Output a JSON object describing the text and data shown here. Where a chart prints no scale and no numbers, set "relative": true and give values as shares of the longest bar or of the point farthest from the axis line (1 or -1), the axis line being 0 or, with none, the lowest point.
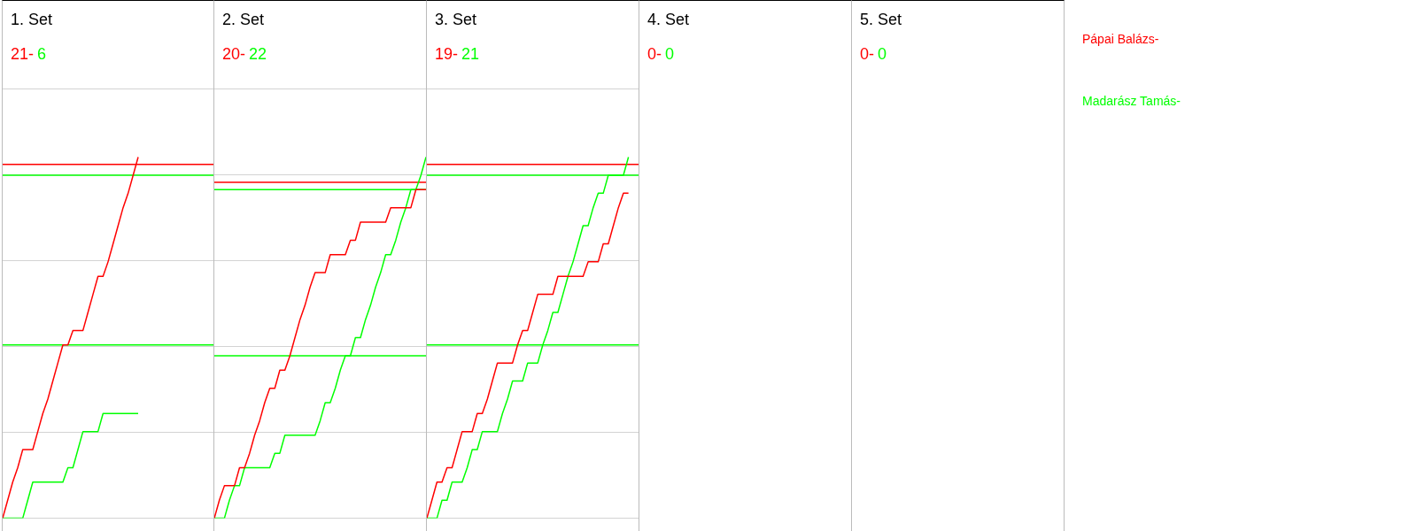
{
  "chart_data": [
    {
      "type": "line",
      "title": "1. Set",
      "annotations": [
        "21-",
        "6"
      ],
      "legend": "right",
      "grid": "y",
      "relative": true,
      "categories": [
        null,
        null,
        null,
        null,
        null,
        null,
        null,
        null,
        null,
        null,
        null,
        null,
        null,
        null,
        null,
        null,
        null,
        null,
        null,
        null,
        null,
        null,
        null,
        null,
        null,
        null,
        null,
        null,
        null,
        null,
        null,
        null,
        null,
        null,
        null,
        null,
        null,
        null,
        null,
        null,
        null,
        null,
        null
      ],
      "ref_lines": [
        {
          "axis": "y",
          "value": 0.98,
          "color": "#ff0000"
        },
        {
          "axis": "y",
          "value": 0.95,
          "color": "#00ff00"
        },
        {
          "axis": "y",
          "value": 0.48,
          "color": "#00ff00"
        }
      ],
      "series": [
        {
          "name": "Pápai Balázs-",
          "color": "#ff0000",
          "values": [
            0,
            0.05,
            0.1,
            0.14,
            0.19,
            0.19,
            0.19,
            0.24,
            0.29,
            0.33,
            0.38,
            0.43,
            0.48,
            0.48,
            0.52,
            0.52,
            0.52,
            0.57,
            0.62,
            0.67,
            0.67,
            0.71,
            0.76,
            0.81,
            0.86,
            0.9,
            0.95,
            1,
            null,
            null,
            null,
            null,
            null,
            null,
            null,
            null,
            null,
            null,
            null,
            null,
            null,
            null,
            null
          ]
        },
        {
          "name": "Madarász Tamás-",
          "color": "#00ff00",
          "values": [
            0,
            0,
            0,
            0,
            0,
            0.05,
            0.1,
            0.1,
            0.1,
            0.1,
            0.1,
            0.1,
            0.1,
            0.14,
            0.14,
            0.19,
            0.24,
            0.24,
            0.24,
            0.24,
            0.29,
            0.29,
            0.29,
            0.29,
            0.29,
            0.29,
            0.29,
            0.29,
            null,
            null,
            null,
            null,
            null,
            null,
            null,
            null,
            null,
            null,
            null,
            null,
            null,
            null,
            null
          ]
        }
      ]
    },
    {
      "type": "line",
      "title": "2. Set",
      "annotations": [
        "20-",
        "22"
      ],
      "grid": "y",
      "relative": true,
      "categories": [
        null,
        null,
        null,
        null,
        null,
        null,
        null,
        null,
        null,
        null,
        null,
        null,
        null,
        null,
        null,
        null,
        null,
        null,
        null,
        null,
        null,
        null,
        null,
        null,
        null,
        null,
        null,
        null,
        null,
        null,
        null,
        null,
        null,
        null,
        null,
        null,
        null,
        null,
        null,
        null,
        null,
        null,
        null
      ],
      "ref_lines": [
        {
          "axis": "y",
          "value": 0.93,
          "color": "#ff0000"
        },
        {
          "axis": "y",
          "value": 0.91,
          "color": "#00ff00"
        },
        {
          "axis": "y",
          "value": 0.45,
          "color": "#00ff00"
        }
      ],
      "series": [
        {
          "color": "#ff0000",
          "values": [
            0,
            0.05,
            0.09,
            0.09,
            0.09,
            0.14,
            0.14,
            0.18,
            0.23,
            0.27,
            0.32,
            0.36,
            0.36,
            0.41,
            0.41,
            0.45,
            0.5,
            0.55,
            0.59,
            0.64,
            0.68,
            0.68,
            0.68,
            0.73,
            0.73,
            0.73,
            0.73,
            0.77,
            0.77,
            0.82,
            0.82,
            0.82,
            0.82,
            0.82,
            0.82,
            0.86,
            0.86,
            0.86,
            0.86,
            0.86,
            0.91,
            0.91,
            0.91
          ]
        },
        {
          "color": "#00ff00",
          "values": [
            0,
            0,
            0,
            0.05,
            0.09,
            0.09,
            0.14,
            0.14,
            0.14,
            0.14,
            0.14,
            0.14,
            0.18,
            0.18,
            0.23,
            0.23,
            0.23,
            0.23,
            0.23,
            0.23,
            0.23,
            0.27,
            0.32,
            0.32,
            0.36,
            0.41,
            0.45,
            0.45,
            0.5,
            0.5,
            0.55,
            0.59,
            0.64,
            0.68,
            0.73,
            0.73,
            0.77,
            0.82,
            0.86,
            0.91,
            0.91,
            0.95,
            1
          ]
        }
      ]
    },
    {
      "type": "line",
      "title": "3. Set",
      "annotations": [
        "19-",
        "21"
      ],
      "grid": "y",
      "relative": true,
      "categories": [
        null,
        null,
        null,
        null,
        null,
        null,
        null,
        null,
        null,
        null,
        null,
        null,
        null,
        null,
        null,
        null,
        null,
        null,
        null,
        null,
        null,
        null,
        null,
        null,
        null,
        null,
        null,
        null,
        null,
        null,
        null,
        null,
        null,
        null,
        null,
        null,
        null,
        null,
        null,
        null,
        null,
        null,
        null
      ],
      "ref_lines": [
        {
          "axis": "y",
          "value": 0.98,
          "color": "#ff0000"
        },
        {
          "axis": "y",
          "value": 0.95,
          "color": "#00ff00"
        },
        {
          "axis": "y",
          "value": 0.48,
          "color": "#00ff00"
        }
      ],
      "series": [
        {
          "color": "#ff0000",
          "values": [
            0,
            0.05,
            0.1,
            0.1,
            0.14,
            0.14,
            0.19,
            0.24,
            0.24,
            0.24,
            0.29,
            0.29,
            0.33,
            0.38,
            0.43,
            0.43,
            0.43,
            0.43,
            0.48,
            0.52,
            0.52,
            0.57,
            0.62,
            0.62,
            0.62,
            0.62,
            0.67,
            0.67,
            0.67,
            0.67,
            0.67,
            0.67,
            0.71,
            0.71,
            0.71,
            0.76,
            0.76,
            0.81,
            0.86,
            0.9,
            0.9,
            null,
            null
          ]
        },
        {
          "color": "#00ff00",
          "values": [
            0,
            0,
            0,
            0.05,
            0.05,
            0.1,
            0.1,
            0.1,
            0.14,
            0.19,
            0.19,
            0.24,
            0.24,
            0.24,
            0.24,
            0.29,
            0.33,
            0.38,
            0.38,
            0.38,
            0.43,
            0.43,
            0.43,
            0.48,
            0.52,
            0.57,
            0.57,
            0.62,
            0.67,
            0.71,
            0.76,
            0.81,
            0.81,
            0.86,
            0.9,
            0.9,
            0.95,
            0.95,
            0.95,
            0.95,
            1,
            null,
            null
          ]
        }
      ]
    },
    {
      "type": "other",
      "title": "4. Set",
      "annotations": [
        "0-",
        "0"
      ]
    },
    {
      "type": "other",
      "title": "5. Set",
      "annotations": [
        "0-",
        "0"
      ]
    }
  ]
}
